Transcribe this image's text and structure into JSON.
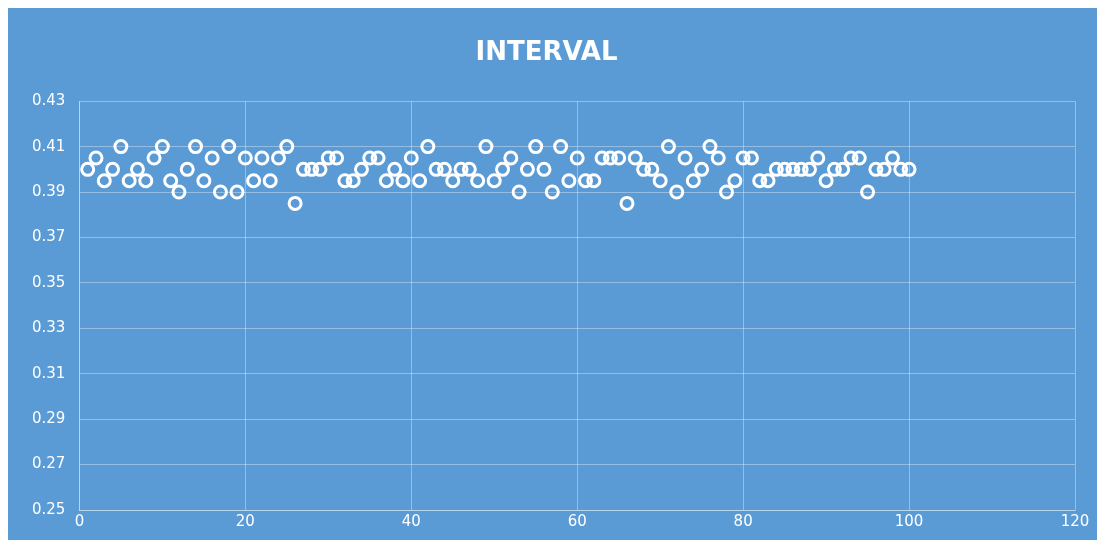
{
  "chart_data": {
    "type": "scatter",
    "title": "INTERVAL",
    "x": [
      1,
      2,
      3,
      4,
      5,
      6,
      7,
      8,
      9,
      10,
      11,
      12,
      13,
      14,
      15,
      16,
      17,
      18,
      19,
      20,
      21,
      22,
      23,
      24,
      25,
      26,
      27,
      28,
      29,
      30,
      31,
      32,
      33,
      34,
      35,
      36,
      37,
      38,
      39,
      40,
      41,
      42,
      43,
      44,
      45,
      46,
      47,
      48,
      49,
      50,
      51,
      52,
      53,
      54,
      55,
      56,
      57,
      58,
      59,
      60,
      61,
      62,
      63,
      64,
      65,
      66,
      67,
      68,
      69,
      70,
      71,
      72,
      73,
      74,
      75,
      76,
      77,
      78,
      79,
      80,
      81,
      82,
      83,
      84,
      85,
      86,
      87,
      88,
      89,
      90,
      91,
      92,
      93,
      94,
      95,
      96,
      97,
      98,
      99,
      100
    ],
    "series": [
      {
        "color": "#ffffff",
        "values": [
          0.4,
          0.405,
          0.395,
          0.4,
          0.41,
          0.395,
          0.4,
          0.395,
          0.405,
          0.41,
          0.395,
          0.39,
          0.4,
          0.41,
          0.395,
          0.405,
          0.39,
          0.41,
          0.39,
          0.405,
          0.395,
          0.405,
          0.395,
          0.405,
          0.41,
          0.385,
          0.4,
          0.4,
          0.4,
          0.405,
          0.405,
          0.395,
          0.395,
          0.4,
          0.405,
          0.405,
          0.395,
          0.4,
          0.395,
          0.405,
          0.395,
          0.41,
          0.4,
          0.4,
          0.395,
          0.4,
          0.4,
          0.395,
          0.41,
          0.395,
          0.4,
          0.405,
          0.39,
          0.4,
          0.41,
          0.4,
          0.39,
          0.41,
          0.395,
          0.405,
          0.395,
          0.395,
          0.405,
          0.405,
          0.405,
          0.385,
          0.405,
          0.4,
          0.4,
          0.395,
          0.41,
          0.39,
          0.405,
          0.395,
          0.4,
          0.41,
          0.405,
          0.39,
          0.395,
          0.405,
          0.405,
          0.395,
          0.395,
          0.4,
          0.4,
          0.4,
          0.4,
          0.4,
          0.405,
          0.395,
          0.4,
          0.4,
          0.405,
          0.405,
          0.39,
          0.4,
          0.4,
          0.405,
          0.4,
          0.4
        ]
      }
    ],
    "xlim": [
      0,
      120
    ],
    "xticks": [
      0,
      20,
      40,
      60,
      80,
      100,
      120
    ],
    "ylim": [
      0.25,
      0.43
    ],
    "yticks": [
      0.25,
      0.27,
      0.29,
      0.31,
      0.33,
      0.35,
      0.37,
      0.39,
      0.41,
      0.43
    ],
    "grid": true,
    "legend": false,
    "marker": "circle"
  }
}
